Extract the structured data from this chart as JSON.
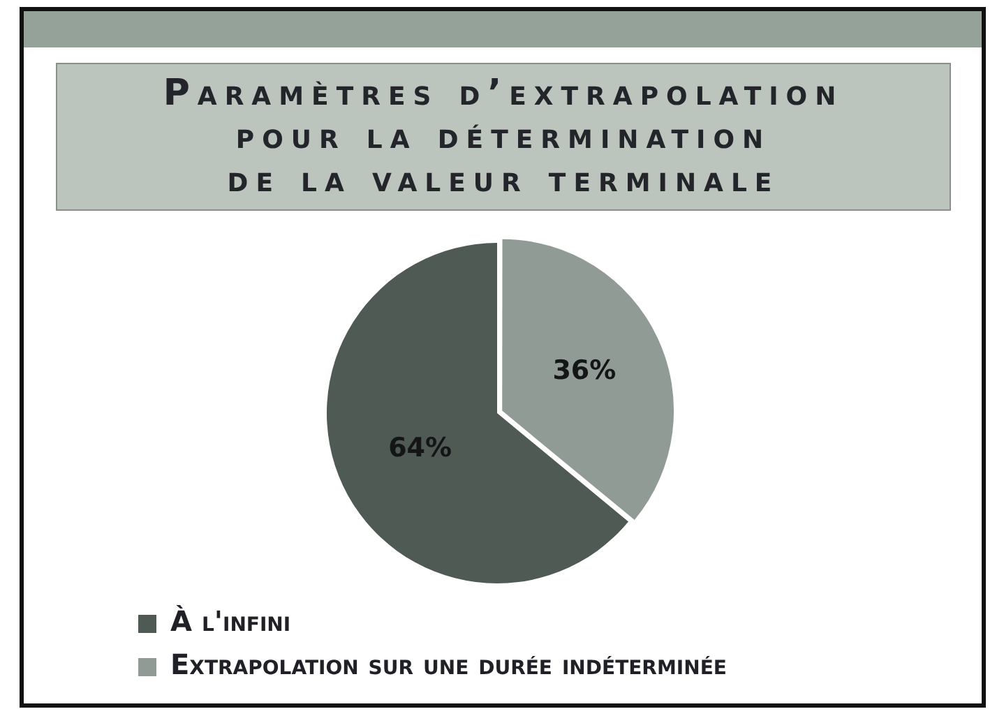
{
  "chart_data": {
    "type": "pie",
    "title": "Paramètres d’extrapolation\npour la détermination\nde la valeur terminale",
    "categories": [
      "À l'infini",
      "Extrapolation sur une durée indéterminée"
    ],
    "values": [
      64,
      36
    ],
    "colors": [
      "#4f5a54",
      "#919b95"
    ],
    "value_labels": [
      "64%",
      "36%"
    ],
    "legend": "bottom left"
  }
}
